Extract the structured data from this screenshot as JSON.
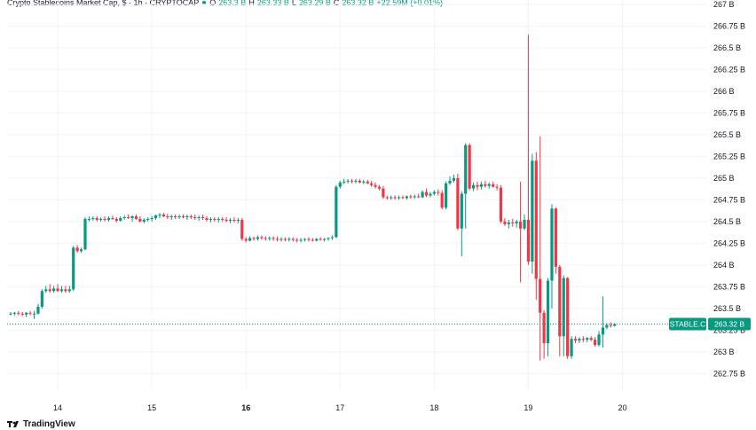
{
  "header": {
    "title": "Crypto Stablecoins Market Cap, $ · 1h · CRYPTOCAP",
    "o_label": "O",
    "o_value": "263.3 B",
    "h_label": "H",
    "h_value": "263.33 B",
    "l_label": "L",
    "l_value": "263.29 B",
    "c_label": "C",
    "c_value": "263.32 B",
    "change": "+22.59M (+0.01%)"
  },
  "price_tag": {
    "symbol": "STABLE.C",
    "value": "263.32 B"
  },
  "footer": {
    "brand": "TradingView"
  },
  "colors": {
    "up": "#089981",
    "down": "#f23645",
    "grid": "#f0f3fa",
    "axis_text": "#131722"
  },
  "chart_data": {
    "type": "candlestick",
    "title": "Crypto Stablecoins Market Cap, $ · 1h · CRYPTOCAP",
    "last_value": 263.32,
    "ylim": [
      262.55,
      267.05
    ],
    "y_ticks": [
      {
        "v": 267,
        "label": "267 B"
      },
      {
        "v": 266.75,
        "label": "266.75 B"
      },
      {
        "v": 266.5,
        "label": "266.5 B"
      },
      {
        "v": 266.25,
        "label": "266.25 B"
      },
      {
        "v": 266,
        "label": "266 B"
      },
      {
        "v": 265.75,
        "label": "265.75 B"
      },
      {
        "v": 265.5,
        "label": "265.5 B"
      },
      {
        "v": 265.25,
        "label": "265.25 B"
      },
      {
        "v": 265,
        "label": "265 B"
      },
      {
        "v": 264.75,
        "label": "264.75 B"
      },
      {
        "v": 264.5,
        "label": "264.5 B"
      },
      {
        "v": 264.25,
        "label": "264.25 B"
      },
      {
        "v": 264,
        "label": "264 B"
      },
      {
        "v": 263.75,
        "label": "263.75 B"
      },
      {
        "v": 263.5,
        "label": "263.5 B"
      },
      {
        "v": 263.25,
        "label": "263.25 B"
      },
      {
        "v": 263,
        "label": "263 B"
      },
      {
        "v": 262.75,
        "label": "262.75 B"
      }
    ],
    "x_ticks": [
      {
        "i": 12,
        "label": "14",
        "bold": false
      },
      {
        "i": 36,
        "label": "15",
        "bold": false
      },
      {
        "i": 60,
        "label": "16",
        "bold": true
      },
      {
        "i": 84,
        "label": "17",
        "bold": false
      },
      {
        "i": 108,
        "label": "18",
        "bold": false
      },
      {
        "i": 132,
        "label": "19",
        "bold": false
      },
      {
        "i": 156,
        "label": "20",
        "bold": false
      }
    ],
    "candles": [
      {
        "o": 263.44,
        "h": 263.46,
        "l": 263.42,
        "c": 263.44
      },
      {
        "o": 263.44,
        "h": 263.46,
        "l": 263.42,
        "c": 263.45
      },
      {
        "o": 263.45,
        "h": 263.47,
        "l": 263.42,
        "c": 263.44
      },
      {
        "o": 263.44,
        "h": 263.46,
        "l": 263.41,
        "c": 263.43
      },
      {
        "o": 263.43,
        "h": 263.46,
        "l": 263.4,
        "c": 263.45
      },
      {
        "o": 263.45,
        "h": 263.47,
        "l": 263.42,
        "c": 263.44
      },
      {
        "o": 263.44,
        "h": 263.47,
        "l": 263.38,
        "c": 263.44
      },
      {
        "o": 263.44,
        "h": 263.55,
        "l": 263.43,
        "c": 263.52
      },
      {
        "o": 263.52,
        "h": 263.72,
        "l": 263.5,
        "c": 263.7
      },
      {
        "o": 263.7,
        "h": 263.76,
        "l": 263.68,
        "c": 263.72
      },
      {
        "o": 263.72,
        "h": 263.78,
        "l": 263.68,
        "c": 263.7
      },
      {
        "o": 263.7,
        "h": 263.76,
        "l": 263.68,
        "c": 263.73
      },
      {
        "o": 263.73,
        "h": 263.78,
        "l": 263.69,
        "c": 263.7
      },
      {
        "o": 263.7,
        "h": 263.76,
        "l": 263.68,
        "c": 263.72
      },
      {
        "o": 263.72,
        "h": 263.76,
        "l": 263.68,
        "c": 263.7
      },
      {
        "o": 263.7,
        "h": 263.76,
        "l": 263.68,
        "c": 263.72
      },
      {
        "o": 263.72,
        "h": 264.22,
        "l": 263.7,
        "c": 264.2
      },
      {
        "o": 264.2,
        "h": 264.23,
        "l": 264.14,
        "c": 264.16
      },
      {
        "o": 264.16,
        "h": 264.2,
        "l": 264.14,
        "c": 264.18
      },
      {
        "o": 264.18,
        "h": 264.55,
        "l": 264.17,
        "c": 264.53
      },
      {
        "o": 264.53,
        "h": 264.56,
        "l": 264.5,
        "c": 264.53
      },
      {
        "o": 264.53,
        "h": 264.56,
        "l": 264.51,
        "c": 264.54
      },
      {
        "o": 264.54,
        "h": 264.56,
        "l": 264.5,
        "c": 264.52
      },
      {
        "o": 264.52,
        "h": 264.55,
        "l": 264.5,
        "c": 264.53
      },
      {
        "o": 264.53,
        "h": 264.56,
        "l": 264.5,
        "c": 264.52
      },
      {
        "o": 264.52,
        "h": 264.56,
        "l": 264.5,
        "c": 264.54
      },
      {
        "o": 264.54,
        "h": 264.57,
        "l": 264.52,
        "c": 264.53
      },
      {
        "o": 264.53,
        "h": 264.55,
        "l": 264.49,
        "c": 264.51
      },
      {
        "o": 264.51,
        "h": 264.56,
        "l": 264.5,
        "c": 264.54
      },
      {
        "o": 264.54,
        "h": 264.57,
        "l": 264.52,
        "c": 264.55
      },
      {
        "o": 264.55,
        "h": 264.58,
        "l": 264.53,
        "c": 264.54
      },
      {
        "o": 264.54,
        "h": 264.57,
        "l": 264.5,
        "c": 264.56
      },
      {
        "o": 264.56,
        "h": 264.58,
        "l": 264.52,
        "c": 264.53
      },
      {
        "o": 264.53,
        "h": 264.56,
        "l": 264.49,
        "c": 264.5
      },
      {
        "o": 264.5,
        "h": 264.54,
        "l": 264.48,
        "c": 264.52
      },
      {
        "o": 264.52,
        "h": 264.55,
        "l": 264.5,
        "c": 264.53
      },
      {
        "o": 264.53,
        "h": 264.56,
        "l": 264.5,
        "c": 264.54
      },
      {
        "o": 264.54,
        "h": 264.58,
        "l": 264.52,
        "c": 264.57
      },
      {
        "o": 264.57,
        "h": 264.6,
        "l": 264.54,
        "c": 264.58
      },
      {
        "o": 264.58,
        "h": 264.6,
        "l": 264.55,
        "c": 264.56
      },
      {
        "o": 264.56,
        "h": 264.59,
        "l": 264.53,
        "c": 264.55
      },
      {
        "o": 264.55,
        "h": 264.58,
        "l": 264.52,
        "c": 264.56
      },
      {
        "o": 264.56,
        "h": 264.58,
        "l": 264.53,
        "c": 264.55
      },
      {
        "o": 264.55,
        "h": 264.58,
        "l": 264.53,
        "c": 264.56
      },
      {
        "o": 264.56,
        "h": 264.58,
        "l": 264.54,
        "c": 264.55
      },
      {
        "o": 264.55,
        "h": 264.58,
        "l": 264.52,
        "c": 264.56
      },
      {
        "o": 264.56,
        "h": 264.58,
        "l": 264.53,
        "c": 264.55
      },
      {
        "o": 264.55,
        "h": 264.58,
        "l": 264.52,
        "c": 264.54
      },
      {
        "o": 264.54,
        "h": 264.57,
        "l": 264.51,
        "c": 264.55
      },
      {
        "o": 264.55,
        "h": 264.58,
        "l": 264.52,
        "c": 264.54
      },
      {
        "o": 264.54,
        "h": 264.56,
        "l": 264.5,
        "c": 264.52
      },
      {
        "o": 264.52,
        "h": 264.55,
        "l": 264.49,
        "c": 264.53
      },
      {
        "o": 264.53,
        "h": 264.55,
        "l": 264.5,
        "c": 264.52
      },
      {
        "o": 264.52,
        "h": 264.55,
        "l": 264.49,
        "c": 264.53
      },
      {
        "o": 264.53,
        "h": 264.55,
        "l": 264.5,
        "c": 264.52
      },
      {
        "o": 264.52,
        "h": 264.55,
        "l": 264.49,
        "c": 264.51
      },
      {
        "o": 264.51,
        "h": 264.54,
        "l": 264.48,
        "c": 264.52
      },
      {
        "o": 264.52,
        "h": 264.55,
        "l": 264.49,
        "c": 264.51
      },
      {
        "o": 264.51,
        "h": 264.54,
        "l": 264.48,
        "c": 264.52
      },
      {
        "o": 264.52,
        "h": 264.54,
        "l": 264.28,
        "c": 264.3
      },
      {
        "o": 264.3,
        "h": 264.32,
        "l": 264.26,
        "c": 264.28
      },
      {
        "o": 264.28,
        "h": 264.33,
        "l": 264.27,
        "c": 264.31
      },
      {
        "o": 264.31,
        "h": 264.33,
        "l": 264.28,
        "c": 264.3
      },
      {
        "o": 264.3,
        "h": 264.34,
        "l": 264.28,
        "c": 264.32
      },
      {
        "o": 264.32,
        "h": 264.34,
        "l": 264.29,
        "c": 264.31
      },
      {
        "o": 264.31,
        "h": 264.33,
        "l": 264.28,
        "c": 264.3
      },
      {
        "o": 264.3,
        "h": 264.33,
        "l": 264.28,
        "c": 264.31
      },
      {
        "o": 264.31,
        "h": 264.33,
        "l": 264.28,
        "c": 264.3
      },
      {
        "o": 264.3,
        "h": 264.33,
        "l": 264.27,
        "c": 264.29
      },
      {
        "o": 264.29,
        "h": 264.32,
        "l": 264.27,
        "c": 264.3
      },
      {
        "o": 264.3,
        "h": 264.32,
        "l": 264.27,
        "c": 264.29
      },
      {
        "o": 264.29,
        "h": 264.32,
        "l": 264.27,
        "c": 264.3
      },
      {
        "o": 264.3,
        "h": 264.32,
        "l": 264.27,
        "c": 264.29
      },
      {
        "o": 264.29,
        "h": 264.31,
        "l": 264.26,
        "c": 264.28
      },
      {
        "o": 264.28,
        "h": 264.31,
        "l": 264.26,
        "c": 264.29
      },
      {
        "o": 264.29,
        "h": 264.31,
        "l": 264.27,
        "c": 264.3
      },
      {
        "o": 264.3,
        "h": 264.32,
        "l": 264.27,
        "c": 264.29
      },
      {
        "o": 264.29,
        "h": 264.31,
        "l": 264.27,
        "c": 264.28
      },
      {
        "o": 264.28,
        "h": 264.31,
        "l": 264.27,
        "c": 264.3
      },
      {
        "o": 264.3,
        "h": 264.32,
        "l": 264.28,
        "c": 264.29
      },
      {
        "o": 264.29,
        "h": 264.31,
        "l": 264.27,
        "c": 264.3
      },
      {
        "o": 264.3,
        "h": 264.32,
        "l": 264.28,
        "c": 264.31
      },
      {
        "o": 264.31,
        "h": 264.34,
        "l": 264.29,
        "c": 264.32
      },
      {
        "o": 264.32,
        "h": 264.92,
        "l": 264.31,
        "c": 264.9
      },
      {
        "o": 264.9,
        "h": 264.97,
        "l": 264.88,
        "c": 264.95
      },
      {
        "o": 264.95,
        "h": 264.99,
        "l": 264.93,
        "c": 264.96
      },
      {
        "o": 264.96,
        "h": 264.99,
        "l": 264.94,
        "c": 264.97
      },
      {
        "o": 264.97,
        "h": 264.99,
        "l": 264.94,
        "c": 264.96
      },
      {
        "o": 264.96,
        "h": 264.99,
        "l": 264.94,
        "c": 264.97
      },
      {
        "o": 264.97,
        "h": 264.99,
        "l": 264.94,
        "c": 264.95
      },
      {
        "o": 264.95,
        "h": 264.98,
        "l": 264.93,
        "c": 264.96
      },
      {
        "o": 264.96,
        "h": 264.98,
        "l": 264.93,
        "c": 264.94
      },
      {
        "o": 264.94,
        "h": 264.97,
        "l": 264.9,
        "c": 264.92
      },
      {
        "o": 264.92,
        "h": 264.95,
        "l": 264.88,
        "c": 264.9
      },
      {
        "o": 264.9,
        "h": 264.92,
        "l": 264.86,
        "c": 264.88
      },
      {
        "o": 264.88,
        "h": 264.91,
        "l": 264.76,
        "c": 264.78
      },
      {
        "o": 264.78,
        "h": 264.8,
        "l": 264.75,
        "c": 264.77
      },
      {
        "o": 264.77,
        "h": 264.8,
        "l": 264.75,
        "c": 264.78
      },
      {
        "o": 264.78,
        "h": 264.8,
        "l": 264.75,
        "c": 264.77
      },
      {
        "o": 264.77,
        "h": 264.8,
        "l": 264.75,
        "c": 264.78
      },
      {
        "o": 264.78,
        "h": 264.8,
        "l": 264.76,
        "c": 264.77
      },
      {
        "o": 264.77,
        "h": 264.8,
        "l": 264.75,
        "c": 264.79
      },
      {
        "o": 264.79,
        "h": 264.81,
        "l": 264.76,
        "c": 264.78
      },
      {
        "o": 264.78,
        "h": 264.81,
        "l": 264.76,
        "c": 264.79
      },
      {
        "o": 264.79,
        "h": 264.82,
        "l": 264.77,
        "c": 264.78
      },
      {
        "o": 264.78,
        "h": 264.86,
        "l": 264.77,
        "c": 264.84
      },
      {
        "o": 264.84,
        "h": 264.88,
        "l": 264.78,
        "c": 264.8
      },
      {
        "o": 264.8,
        "h": 264.84,
        "l": 264.78,
        "c": 264.82
      },
      {
        "o": 264.82,
        "h": 264.86,
        "l": 264.8,
        "c": 264.84
      },
      {
        "o": 264.84,
        "h": 264.87,
        "l": 264.8,
        "c": 264.83
      },
      {
        "o": 264.83,
        "h": 264.86,
        "l": 264.64,
        "c": 264.66
      },
      {
        "o": 264.66,
        "h": 264.96,
        "l": 264.64,
        "c": 264.94
      },
      {
        "o": 264.94,
        "h": 265.02,
        "l": 264.92,
        "c": 264.97
      },
      {
        "o": 264.97,
        "h": 265.04,
        "l": 264.95,
        "c": 265.0
      },
      {
        "o": 265.0,
        "h": 265.05,
        "l": 264.4,
        "c": 264.42
      },
      {
        "o": 264.42,
        "h": 264.85,
        "l": 264.1,
        "c": 264.82
      },
      {
        "o": 264.82,
        "h": 265.4,
        "l": 264.42,
        "c": 265.38
      },
      {
        "o": 265.38,
        "h": 265.4,
        "l": 264.86,
        "c": 264.88
      },
      {
        "o": 264.88,
        "h": 264.95,
        "l": 264.85,
        "c": 264.92
      },
      {
        "o": 264.92,
        "h": 264.96,
        "l": 264.86,
        "c": 264.9
      },
      {
        "o": 264.9,
        "h": 264.96,
        "l": 264.87,
        "c": 264.93
      },
      {
        "o": 264.93,
        "h": 264.97,
        "l": 264.89,
        "c": 264.91
      },
      {
        "o": 264.91,
        "h": 264.95,
        "l": 264.88,
        "c": 264.93
      },
      {
        "o": 264.93,
        "h": 264.96,
        "l": 264.89,
        "c": 264.9
      },
      {
        "o": 264.9,
        "h": 264.93,
        "l": 264.86,
        "c": 264.89
      },
      {
        "o": 264.89,
        "h": 264.92,
        "l": 264.48,
        "c": 264.5
      },
      {
        "o": 264.5,
        "h": 264.54,
        "l": 264.45,
        "c": 264.47
      },
      {
        "o": 264.47,
        "h": 264.52,
        "l": 264.42,
        "c": 264.49
      },
      {
        "o": 264.49,
        "h": 264.53,
        "l": 264.44,
        "c": 264.48
      },
      {
        "o": 264.48,
        "h": 264.52,
        "l": 264.43,
        "c": 264.5
      },
      {
        "o": 264.5,
        "h": 264.96,
        "l": 263.8,
        "c": 264.42
      },
      {
        "o": 264.42,
        "h": 264.58,
        "l": 264.4,
        "c": 264.52
      },
      {
        "o": 264.52,
        "h": 266.65,
        "l": 264.0,
        "c": 264.04
      },
      {
        "o": 264.04,
        "h": 265.28,
        "l": 263.9,
        "c": 265.2
      },
      {
        "o": 265.2,
        "h": 265.3,
        "l": 263.6,
        "c": 263.84
      },
      {
        "o": 263.84,
        "h": 265.48,
        "l": 262.9,
        "c": 263.45
      },
      {
        "o": 263.45,
        "h": 263.48,
        "l": 262.92,
        "c": 263.1
      },
      {
        "o": 263.1,
        "h": 263.85,
        "l": 262.95,
        "c": 263.82
      },
      {
        "o": 263.82,
        "h": 264.7,
        "l": 263.5,
        "c": 264.65
      },
      {
        "o": 264.65,
        "h": 264.66,
        "l": 263.9,
        "c": 263.98
      },
      {
        "o": 263.98,
        "h": 264.0,
        "l": 262.95,
        "c": 263.18
      },
      {
        "o": 263.18,
        "h": 263.88,
        "l": 262.95,
        "c": 263.85
      },
      {
        "o": 263.85,
        "h": 263.86,
        "l": 262.92,
        "c": 262.95
      },
      {
        "o": 262.95,
        "h": 263.18,
        "l": 262.92,
        "c": 263.15
      },
      {
        "o": 263.15,
        "h": 263.18,
        "l": 263.1,
        "c": 263.13
      },
      {
        "o": 263.13,
        "h": 263.17,
        "l": 263.1,
        "c": 263.15
      },
      {
        "o": 263.15,
        "h": 263.18,
        "l": 263.11,
        "c": 263.14
      },
      {
        "o": 263.14,
        "h": 263.17,
        "l": 263.11,
        "c": 263.16
      },
      {
        "o": 263.16,
        "h": 263.18,
        "l": 263.12,
        "c": 263.14
      },
      {
        "o": 263.14,
        "h": 263.17,
        "l": 263.06,
        "c": 263.08
      },
      {
        "o": 263.08,
        "h": 263.24,
        "l": 263.06,
        "c": 263.2
      },
      {
        "o": 263.2,
        "h": 263.64,
        "l": 263.05,
        "c": 263.28
      },
      {
        "o": 263.28,
        "h": 263.33,
        "l": 263.26,
        "c": 263.31
      },
      {
        "o": 263.31,
        "h": 263.34,
        "l": 263.28,
        "c": 263.3
      },
      {
        "o": 263.3,
        "h": 263.33,
        "l": 263.29,
        "c": 263.32
      }
    ]
  }
}
